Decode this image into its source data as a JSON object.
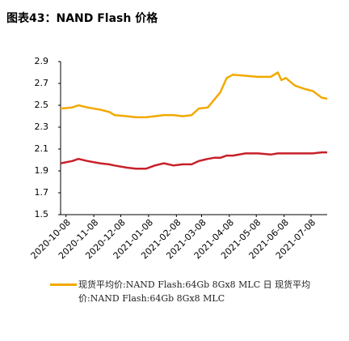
{
  "chart_data": {
    "type": "line",
    "title": "图表43：NAND Flash 价格",
    "x": [
      "2020-10-02",
      "2020-10-15",
      "2020-10-22",
      "2020-11-01",
      "2020-11-15",
      "2020-11-25",
      "2020-12-01",
      "2020-12-15",
      "2020-12-25",
      "2021-01-05",
      "2021-01-15",
      "2021-01-25",
      "2021-02-05",
      "2021-02-15",
      "2021-02-25",
      "2021-03-05",
      "2021-03-15",
      "2021-03-22",
      "2021-03-29",
      "2021-04-05",
      "2021-04-12",
      "2021-04-26",
      "2021-05-10",
      "2021-05-24",
      "2021-06-01",
      "2021-06-05",
      "2021-06-10",
      "2021-06-20",
      "2021-07-01",
      "2021-07-10",
      "2021-07-20",
      "2021-07-26"
    ],
    "series": [
      {
        "name": "现货平均价:NAND Flash:64Gb 8Gx8 MLC 日",
        "color": "#f2a900",
        "values": [
          2.47,
          2.48,
          2.5,
          2.48,
          2.46,
          2.44,
          2.41,
          2.4,
          2.39,
          2.39,
          2.4,
          2.41,
          2.41,
          2.4,
          2.41,
          2.47,
          2.48,
          2.55,
          2.62,
          2.75,
          2.78,
          2.77,
          2.76,
          2.76,
          2.8,
          2.73,
          2.75,
          2.68,
          2.65,
          2.63,
          2.57,
          2.56
        ]
      },
      {
        "name": "现货平均价:NAND Flash:64Gb 8Gx8 MLC",
        "color": "#c8202a",
        "values": [
          1.97,
          1.99,
          2.01,
          1.99,
          1.97,
          1.96,
          1.95,
          1.93,
          1.92,
          1.92,
          1.95,
          1.97,
          1.95,
          1.96,
          1.96,
          1.99,
          2.01,
          2.02,
          2.02,
          2.04,
          2.04,
          2.06,
          2.06,
          2.05,
          2.06,
          2.06,
          2.06,
          2.06,
          2.06,
          2.06,
          2.07,
          2.07
        ]
      }
    ],
    "xlim": [
      "2020-10-02",
      "2021-07-26"
    ],
    "xticks": [
      "2020-10-08",
      "2020-11-08",
      "2020-12-08",
      "2021-01-08",
      "2021-02-08",
      "2021-03-08",
      "2021-04-08",
      "2021-05-08",
      "2021-06-08",
      "2021-07-08"
    ],
    "ylim": [
      1.5,
      2.9
    ],
    "yticks": [
      1.5,
      1.7,
      1.9,
      2.1,
      2.3,
      2.5,
      2.7,
      2.9
    ],
    "grid": false
  }
}
